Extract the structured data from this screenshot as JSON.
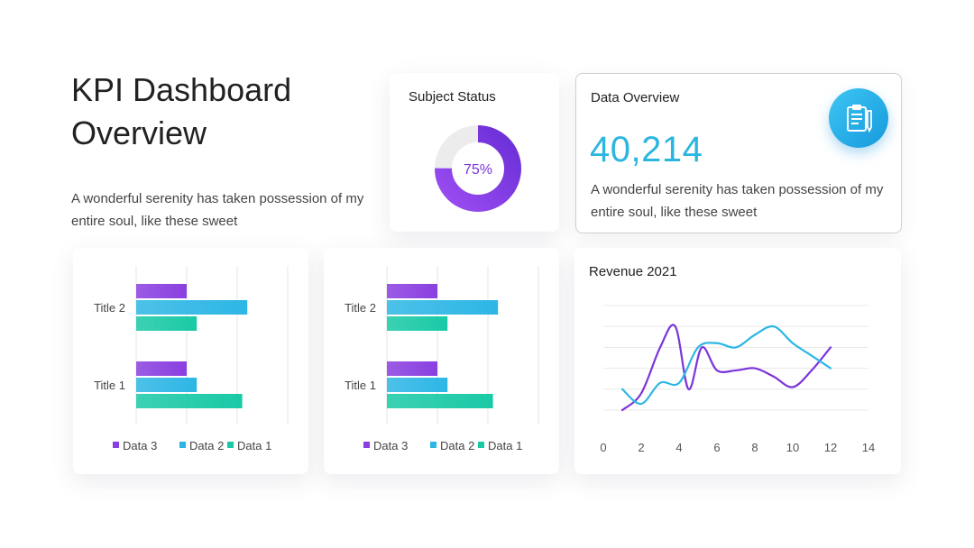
{
  "page": {
    "title_line1": "KPI Dashboard",
    "title_line2": "Overview",
    "intro_text": "A wonderful serenity has taken possession of my entire soul, like these sweet"
  },
  "colors": {
    "data1": "#19c9a6",
    "data2": "#2db6e5",
    "data3": "#8a3fe0",
    "accent_blue": "#2bb6e0",
    "purple": "#7b35db"
  },
  "subject_status": {
    "title": "Subject Status",
    "percent_label": "75%",
    "fraction": 0.75
  },
  "data_overview": {
    "title": "Data Overview",
    "value": "40,214",
    "description": "A wonderful serenity has taken possession of my entire soul, like these sweet",
    "icon": "clipboard-icon"
  },
  "chart_data": [
    {
      "type": "bar",
      "orientation": "horizontal",
      "categories": [
        "Title 1",
        "Title 2"
      ],
      "series": [
        {
          "name": "Data 3",
          "values": [
            1.0,
            1.0
          ]
        },
        {
          "name": "Data 2",
          "values": [
            1.2,
            2.2
          ]
        },
        {
          "name": "Data 1",
          "values": [
            2.1,
            1.2
          ]
        }
      ],
      "xlim": [
        0,
        3
      ],
      "grid": true,
      "legend": "bottom"
    },
    {
      "type": "bar",
      "orientation": "horizontal",
      "categories": [
        "Title 1",
        "Title 2"
      ],
      "series": [
        {
          "name": "Data 3",
          "values": [
            1.0,
            1.0
          ]
        },
        {
          "name": "Data 2",
          "values": [
            1.2,
            2.2
          ]
        },
        {
          "name": "Data 1",
          "values": [
            2.1,
            1.2
          ]
        }
      ],
      "xlim": [
        0,
        3
      ],
      "grid": true,
      "legend": "bottom"
    },
    {
      "type": "line",
      "title": "Revenue 2021",
      "xlim": [
        0,
        14
      ],
      "x_ticks": [
        0,
        2,
        4,
        6,
        8,
        10,
        12,
        14
      ],
      "ylim": [
        0,
        5
      ],
      "grid": true,
      "series": [
        {
          "color": "#7b35db",
          "x": [
            1,
            2,
            3,
            3.8,
            4.5,
            5.2,
            6,
            7,
            8,
            9,
            10,
            11,
            12
          ],
          "y": [
            0,
            0.8,
            3,
            4,
            1,
            3,
            1.9,
            1.9,
            2,
            1.6,
            1.1,
            1.9,
            3
          ]
        },
        {
          "color": "#2db6e5",
          "x": [
            1,
            2,
            3,
            4,
            5,
            6,
            7,
            8,
            9,
            10,
            11,
            12
          ],
          "y": [
            1,
            0.3,
            1.3,
            1.3,
            3,
            3.2,
            3,
            3.6,
            4,
            3.2,
            2.6,
            2
          ]
        }
      ]
    }
  ]
}
